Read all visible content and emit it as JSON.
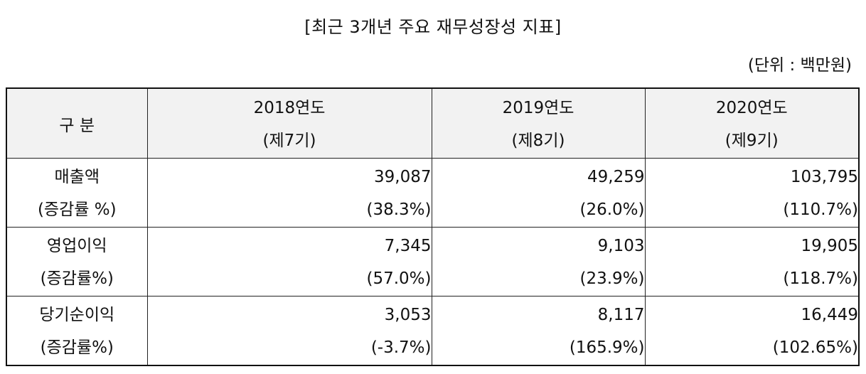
{
  "title": "[최근 3개년 주요 재무성장성 지표]",
  "unit": "(단위 : 백만원)",
  "table": {
    "header": {
      "label": "구 분",
      "years": [
        {
          "year": "2018연도",
          "term": "(제7기)"
        },
        {
          "year": "2019연도",
          "term": "(제8기)"
        },
        {
          "year": "2020연도",
          "term": "(제9기)"
        }
      ]
    },
    "rows": [
      {
        "label": "매출액",
        "sublabel": "(증감률 %)",
        "values": [
          "39,087",
          "49,259",
          "103,795"
        ],
        "rates": [
          "(38.3%)",
          "(26.0%)",
          "(110.7%)"
        ]
      },
      {
        "label": "영업이익",
        "sublabel": "(증감률%)",
        "values": [
          "7,345",
          "9,103",
          "19,905"
        ],
        "rates": [
          "(57.0%)",
          "(23.9%)",
          "(118.7%)"
        ]
      },
      {
        "label": "당기순이익",
        "sublabel": "(증감률%)",
        "values": [
          "3,053",
          "8,117",
          "16,449"
        ],
        "rates": [
          "(-3.7%)",
          "(165.9%)",
          "(102.65%)"
        ]
      }
    ]
  }
}
